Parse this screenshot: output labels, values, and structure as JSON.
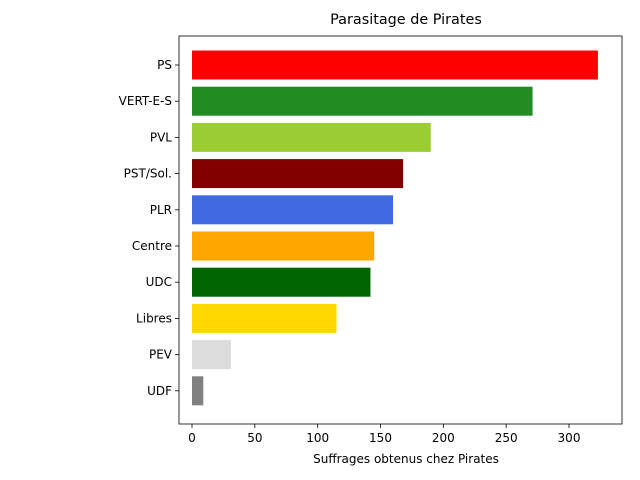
{
  "chart_data": {
    "type": "bar",
    "orientation": "horizontal",
    "title": "Parasitage de Pirates",
    "xlabel": "Suffrages obtenus chez Pirates",
    "ylabel": "",
    "xlim": [
      0,
      340
    ],
    "xticks": [
      0,
      50,
      100,
      150,
      200,
      250,
      300
    ],
    "grid": false,
    "categories": [
      "PS",
      "VERT-E-S",
      "PVL",
      "PST/Sol.",
      "PLR",
      "Centre",
      "UDC",
      "Libres",
      "PEV",
      "UDF"
    ],
    "values": [
      323,
      271,
      190,
      168,
      160,
      145,
      142,
      115,
      31,
      9
    ],
    "colors": [
      "#ff0000",
      "#228b22",
      "#9acd32",
      "#800000",
      "#4169e1",
      "#ffa500",
      "#006400",
      "#ffd700",
      "#dcdcdc",
      "#808080"
    ]
  }
}
